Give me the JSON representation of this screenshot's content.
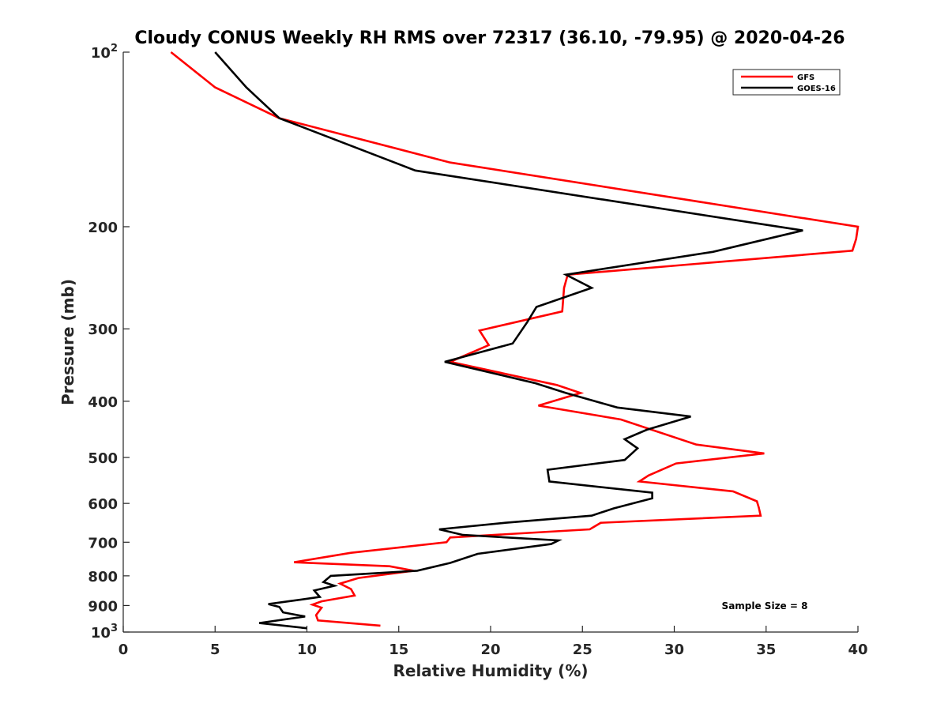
{
  "chart_data": {
    "type": "line",
    "title": "Cloudy CONUS Weekly RH RMS over 72317 (36.10, -79.95) @ 2020-04-26",
    "xlabel": "Relative Humidity (%)",
    "ylabel": "Pressure (mb)",
    "xlim": [
      0,
      40
    ],
    "ylim": [
      100,
      1000
    ],
    "y_scale": "log",
    "y_reversed": true,
    "grid": false,
    "legend_placement": "top-right",
    "x_ticks": [
      0,
      5,
      10,
      15,
      20,
      25,
      30,
      35,
      40
    ],
    "y_ticks": [
      {
        "value": 100,
        "base": "10",
        "exp": "2"
      },
      {
        "value": 200,
        "label": "200"
      },
      {
        "value": 300,
        "label": "300"
      },
      {
        "value": 400,
        "label": "400"
      },
      {
        "value": 500,
        "label": "500"
      },
      {
        "value": 600,
        "label": "600"
      },
      {
        "value": 700,
        "label": "700"
      },
      {
        "value": 800,
        "label": "800"
      },
      {
        "value": 900,
        "label": "900"
      },
      {
        "value": 1000,
        "base": "10",
        "exp": "3"
      }
    ],
    "annotation": "Sample Size = 8",
    "series": [
      {
        "name": "GFS",
        "color": "#ff0000",
        "points": [
          [
            2.6,
            100
          ],
          [
            5.0,
            115
          ],
          [
            8.5,
            130
          ],
          [
            17.8,
            155
          ],
          [
            40.0,
            200
          ],
          [
            39.9,
            210
          ],
          [
            39.7,
            220
          ],
          [
            24.2,
            242
          ],
          [
            24.0,
            255
          ],
          [
            23.9,
            280
          ],
          [
            19.4,
            302
          ],
          [
            19.9,
            320
          ],
          [
            17.8,
            342
          ],
          [
            23.6,
            375
          ],
          [
            24.9,
            387
          ],
          [
            22.6,
            407
          ],
          [
            27.1,
            430
          ],
          [
            31.2,
            475
          ],
          [
            34.9,
            492
          ],
          [
            30.1,
            512
          ],
          [
            28.6,
            537
          ],
          [
            28.1,
            550
          ],
          [
            33.2,
            572
          ],
          [
            34.5,
            595
          ],
          [
            34.6,
            610
          ],
          [
            34.7,
            630
          ],
          [
            26.0,
            648
          ],
          [
            25.4,
            665
          ],
          [
            17.8,
            687
          ],
          [
            17.6,
            700
          ],
          [
            12.4,
            730
          ],
          [
            9.3,
            758
          ],
          [
            14.5,
            770
          ],
          [
            15.8,
            784
          ],
          [
            12.8,
            807
          ],
          [
            11.8,
            825
          ],
          [
            12.4,
            843
          ],
          [
            12.6,
            865
          ],
          [
            10.8,
            885
          ],
          [
            10.3,
            897
          ],
          [
            10.8,
            908
          ],
          [
            10.5,
            935
          ],
          [
            10.6,
            955
          ],
          [
            14.0,
            975
          ]
        ]
      },
      {
        "name": "GOES-16",
        "color": "#000000",
        "points": [
          [
            5.0,
            100
          ],
          [
            6.7,
            115
          ],
          [
            8.5,
            130
          ],
          [
            15.9,
            160
          ],
          [
            37.0,
            203
          ],
          [
            32.1,
            221
          ],
          [
            24.1,
            242
          ],
          [
            25.5,
            255
          ],
          [
            22.5,
            275
          ],
          [
            22.0,
            292
          ],
          [
            21.2,
            318
          ],
          [
            17.5,
            342
          ],
          [
            22.4,
            372
          ],
          [
            24.1,
            387
          ],
          [
            26.9,
            410
          ],
          [
            30.9,
            425
          ],
          [
            28.5,
            448
          ],
          [
            27.3,
            465
          ],
          [
            28.0,
            482
          ],
          [
            27.3,
            505
          ],
          [
            23.1,
            525
          ],
          [
            23.2,
            550
          ],
          [
            28.8,
            575
          ],
          [
            28.8,
            588
          ],
          [
            26.7,
            612
          ],
          [
            25.5,
            630
          ],
          [
            20.8,
            648
          ],
          [
            17.2,
            665
          ],
          [
            18.5,
            680
          ],
          [
            23.7,
            695
          ],
          [
            23.3,
            705
          ],
          [
            19.3,
            733
          ],
          [
            17.8,
            760
          ],
          [
            16.0,
            784
          ],
          [
            11.3,
            800
          ],
          [
            10.9,
            820
          ],
          [
            11.5,
            832
          ],
          [
            10.4,
            848
          ],
          [
            10.7,
            870
          ],
          [
            9.0,
            885
          ],
          [
            7.9,
            895
          ],
          [
            8.5,
            905
          ],
          [
            8.7,
            925
          ],
          [
            9.9,
            940
          ],
          [
            7.4,
            965
          ],
          [
            10.0,
            985
          ]
        ]
      }
    ]
  }
}
